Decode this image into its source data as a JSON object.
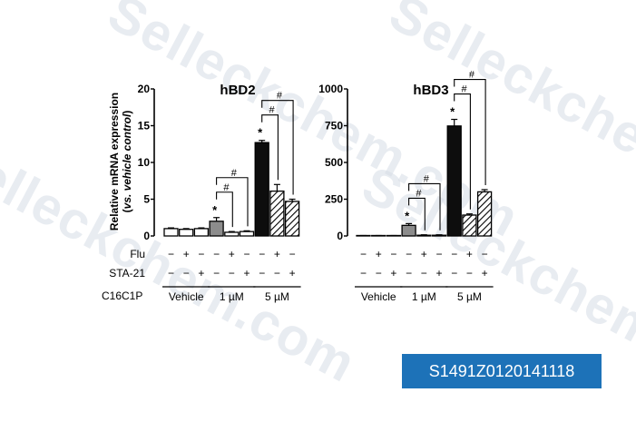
{
  "watermark": "Selleckchem.com",
  "badge_id": "S1491Z0120141118",
  "y_axis_title": {
    "line1": "Relative mRNA expression",
    "line2": "vs. vehicle control"
  },
  "row_labels": {
    "flu": "Flu",
    "sta21": "STA-21",
    "c16c1p": "C16C1P"
  },
  "markers": {
    "plus": "+",
    "minus": "−"
  },
  "treatments": {
    "flu": [
      "−",
      "+",
      "−",
      "−",
      "+",
      "−",
      "−",
      "+",
      "−"
    ],
    "sta21": [
      "−",
      "−",
      "+",
      "−",
      "−",
      "+",
      "−",
      "−",
      "+"
    ]
  },
  "groups": [
    "Vehicle",
    "1 µM",
    "5 µM"
  ],
  "significance": {
    "star": "*",
    "hash": "#"
  },
  "colors": {
    "white": "#ffffff",
    "gray": "#8c8c8c",
    "black": "#0d0d0d",
    "stroke": "#000000"
  },
  "chart_data": [
    {
      "type": "bar",
      "title": "hBD2",
      "yticks": [
        0,
        5,
        10,
        15,
        20
      ],
      "ylim": [
        0,
        20
      ],
      "values": [
        1.0,
        0.9,
        1.0,
        2.0,
        0.5,
        0.6,
        12.7,
        6.1,
        4.7
      ],
      "errors": [
        0.1,
        0.1,
        0.1,
        0.5,
        0.1,
        0.1,
        0.3,
        0.9,
        0.3
      ],
      "fills": [
        "white",
        "white",
        "white",
        "gray",
        "white",
        "white",
        "black",
        "hatch",
        "hatch"
      ],
      "stars": [
        3,
        6
      ],
      "brackets": [
        [
          3,
          4
        ],
        [
          3,
          5
        ],
        [
          6,
          7
        ],
        [
          6,
          8
        ]
      ]
    },
    {
      "type": "bar",
      "title": "hBD3",
      "yticks": [
        0,
        250,
        500,
        750,
        1000
      ],
      "ylim": [
        0,
        1000
      ],
      "values": [
        0,
        0,
        0,
        72,
        5,
        5,
        748,
        142,
        300
      ],
      "errors": [
        3,
        3,
        3,
        12,
        3,
        3,
        45,
        8,
        15
      ],
      "fills": [
        "white",
        "white",
        "white",
        "gray",
        "white",
        "white",
        "black",
        "hatch",
        "hatch"
      ],
      "stars": [
        3,
        6
      ],
      "brackets": [
        [
          3,
          4
        ],
        [
          3,
          5
        ],
        [
          6,
          7
        ],
        [
          6,
          8
        ]
      ]
    }
  ]
}
